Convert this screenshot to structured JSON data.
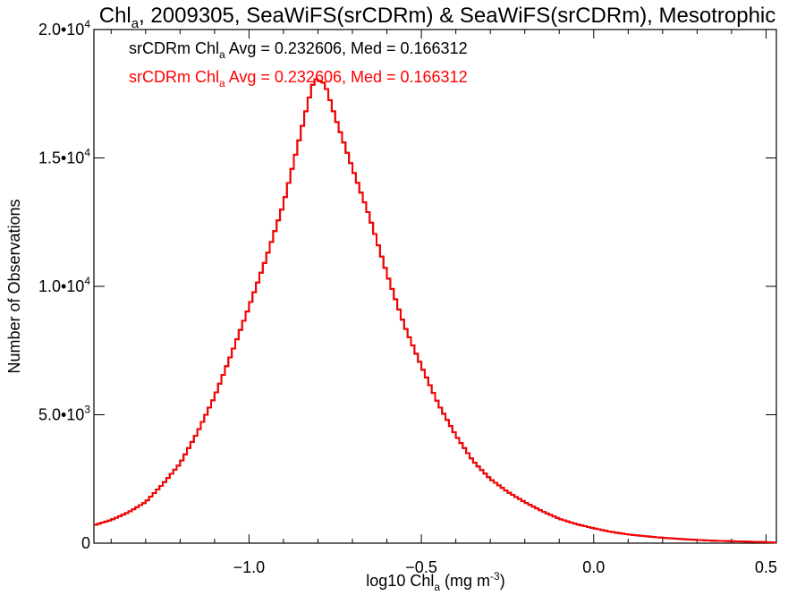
{
  "chart_data": {
    "type": "step",
    "title_pre": "Chl",
    "title_sub": "a",
    "title_post": ", 2009305, SeaWiFS(srCDRm) & SeaWiFS(srCDRm), Mesotrophic",
    "xlabel_pre": "log10 Chl",
    "xlabel_sub": "a",
    "xlabel_mid": " (mg m",
    "xlabel_sup": "-3",
    "xlabel_post": ")",
    "ylabel": "Number of Observations",
    "xlim": [
      -1.45,
      0.53
    ],
    "ylim": [
      0,
      20000
    ],
    "x_ticks": [
      {
        "value": -1.0,
        "label": "−1.0"
      },
      {
        "value": -0.5,
        "label": "−0.5"
      },
      {
        "value": 0.0,
        "label": "0.0"
      },
      {
        "value": 0.5,
        "label": "0.5"
      }
    ],
    "y_ticks": [
      {
        "value": 0,
        "mant": "0",
        "exp": ""
      },
      {
        "value": 5000,
        "mant": "5.0•10",
        "exp": "3"
      },
      {
        "value": 10000,
        "mant": "1.0•10",
        "exp": "4"
      },
      {
        "value": 15000,
        "mant": "1.5•10",
        "exp": "4"
      },
      {
        "value": 20000,
        "mant": "2.0•10",
        "exp": "4"
      }
    ],
    "annotations": [
      {
        "pre": "srCDRm Chl",
        "sub": "a",
        "post": " Avg = 0.232606, Med = 0.166312",
        "color": "#000000"
      },
      {
        "pre": "srCDRm Chl",
        "sub": "a",
        "post": " Avg = 0.232606, Med = 0.166312",
        "color": "#ff0000"
      }
    ],
    "series": [
      {
        "color": "#000000",
        "values_ref": "curve"
      },
      {
        "color": "#ff0000",
        "values_ref": "curve"
      }
    ],
    "curve": {
      "bin_width": 0.01,
      "x": [
        -1.45,
        -1.4,
        -1.35,
        -1.3,
        -1.25,
        -1.2,
        -1.15,
        -1.1,
        -1.05,
        -1.0,
        -0.95,
        -0.9,
        -0.86,
        -0.83,
        -0.81,
        -0.78,
        -0.75,
        -0.7,
        -0.65,
        -0.6,
        -0.55,
        -0.5,
        -0.45,
        -0.4,
        -0.35,
        -0.3,
        -0.25,
        -0.2,
        -0.15,
        -0.1,
        -0.05,
        0.0,
        0.05,
        0.1,
        0.15,
        0.2,
        0.25,
        0.3,
        0.35,
        0.4,
        0.45,
        0.5,
        0.53
      ],
      "y": [
        700,
        900,
        1200,
        1600,
        2300,
        3100,
        4300,
        5700,
        7400,
        9200,
        11100,
        13200,
        15400,
        17100,
        18100,
        17900,
        16600,
        14600,
        12700,
        10500,
        8500,
        6900,
        5400,
        4200,
        3200,
        2500,
        2000,
        1600,
        1250,
        950,
        740,
        580,
        440,
        340,
        270,
        210,
        165,
        125,
        95,
        75,
        60,
        40,
        20
      ]
    }
  }
}
